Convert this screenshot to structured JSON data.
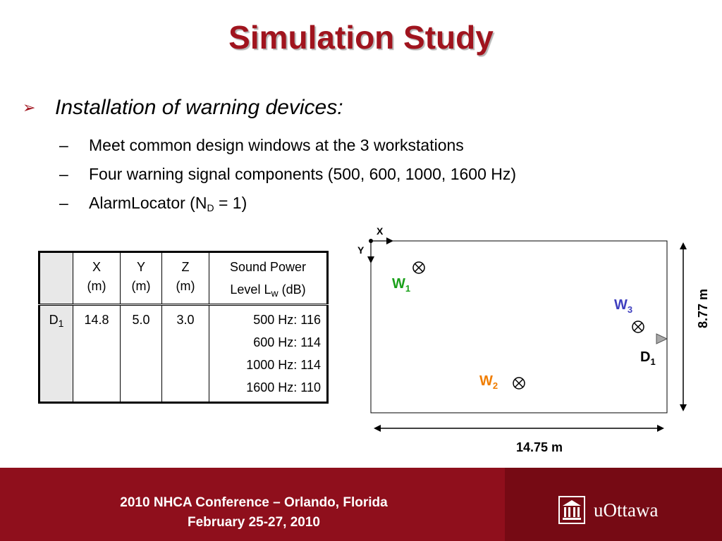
{
  "title": "Simulation Study",
  "bullet": "Installation of warning devices:",
  "subbullets": [
    {
      "dash": "–",
      "text": "Meet common design windows at the 3 workstations"
    },
    {
      "dash": "–",
      "text": "Four warning signal components (500, 600, 1000, 1600 Hz)"
    },
    {
      "dash": "–",
      "text_before": "AlarmLocator (N",
      "subscript": "D",
      "text_after": " = 1)"
    }
  ],
  "table": {
    "headers": {
      "x": [
        "X",
        "(m)"
      ],
      "y": [
        "Y",
        "(m)"
      ],
      "z": [
        "Z",
        "(m)"
      ],
      "power_line1": "Sound Power",
      "power_line2_before": "Level L",
      "power_line2_sub": "w",
      "power_line2_after": " (dB)"
    },
    "row": {
      "label": "D",
      "label_sub": "1",
      "x": "14.8",
      "y": "5.0",
      "z": "3.0",
      "power": [
        "500 Hz: 116",
        "600 Hz: 114",
        "1000 Hz: 114",
        "1600 Hz: 110"
      ]
    }
  },
  "diagram": {
    "axis_x": "X",
    "axis_y": "Y",
    "w1": {
      "label": "W",
      "sub": "1",
      "color": "#1aa01a"
    },
    "w2": {
      "label": "W",
      "sub": "2",
      "color": "#f07d00"
    },
    "w3": {
      "label": "W",
      "sub": "3",
      "color": "#3f3fbf"
    },
    "d1": {
      "label": "D",
      "sub": "1"
    },
    "width_label": "14.75 m",
    "height_label": "8.77 m",
    "marker_icon": "circle-x-icon",
    "device_icon": "triangle-icon"
  },
  "footer": {
    "line1": "2010 NHCA Conference – Orlando, Florida",
    "line2": "February 25-27, 2010",
    "logo_text": "uOttawa",
    "logo_icon": "building-columns-icon"
  },
  "colors": {
    "title": "#a0141e",
    "footer": "#8f0f1c",
    "footer_right": "#760a14"
  }
}
